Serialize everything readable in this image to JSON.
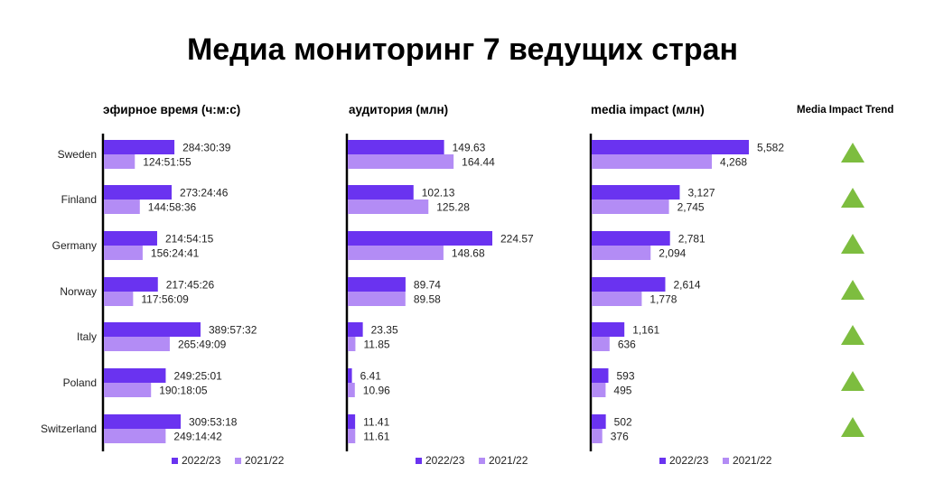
{
  "title": "Медиа мониторинг 7 ведущих стран",
  "colors": {
    "series_2022_23": "#6a33f0",
    "series_2021_22": "#b38cf5",
    "trend_up": "#7dbd3f",
    "axis": "#000000"
  },
  "trend_header": "Media Impact Trend",
  "trend_icons": [
    "triangle-up",
    "triangle-up",
    "triangle-up",
    "triangle-up",
    "triangle-up",
    "triangle-up",
    "triangle-up"
  ],
  "chart_data": [
    {
      "type": "bar",
      "orientation": "horizontal",
      "title": "эфирное время (ч:м:с)",
      "categories": [
        "Sweden",
        "Finland",
        "Germany",
        "Norway",
        "Italy",
        "Poland",
        "Switzerland"
      ],
      "series": [
        {
          "name": "2022/23",
          "values": [
            284.51,
            273.41,
            214.9,
            217.76,
            389.96,
            249.42,
            309.89
          ],
          "labels": [
            "284:30:39",
            "273:24:46",
            "214:54:15",
            "217:45:26",
            "389:57:32",
            "249:25:01",
            "309:53:18"
          ]
        },
        {
          "name": "2021/22",
          "values": [
            124.87,
            144.98,
            156.41,
            117.94,
            265.82,
            190.3,
            249.25
          ],
          "labels": [
            "124:51:55",
            "144:58:36",
            "156:24:41",
            "117:56:09",
            "265:49:09",
            "190:18:05",
            "249:14:42"
          ]
        }
      ],
      "legend_position": "bottom"
    },
    {
      "type": "bar",
      "orientation": "horizontal",
      "title": "аудитория (млн)",
      "categories": [
        "Sweden",
        "Finland",
        "Germany",
        "Norway",
        "Italy",
        "Poland",
        "Switzerland"
      ],
      "series": [
        {
          "name": "2022/23",
          "values": [
            149.63,
            102.13,
            224.57,
            89.74,
            23.35,
            6.41,
            11.41
          ],
          "labels": [
            "149.63",
            "102.13",
            "224.57",
            "89.74",
            "23.35",
            "6.41",
            "11.41"
          ]
        },
        {
          "name": "2021/22",
          "values": [
            164.44,
            125.28,
            148.68,
            89.58,
            11.85,
            10.96,
            11.61
          ],
          "labels": [
            "164.44",
            "125.28",
            "148.68",
            "89.58",
            "11.85",
            "10.96",
            "11.61"
          ]
        }
      ],
      "legend_position": "bottom"
    },
    {
      "type": "bar",
      "orientation": "horizontal",
      "title": "media impact (млн)",
      "categories": [
        "Sweden",
        "Finland",
        "Germany",
        "Norway",
        "Italy",
        "Poland",
        "Switzerland"
      ],
      "series": [
        {
          "name": "2022/23",
          "values": [
            5582,
            3127,
            2781,
            2614,
            1161,
            593,
            502
          ],
          "labels": [
            "5,582",
            "3,127",
            "2,781",
            "2,614",
            "1,161",
            "593",
            "502"
          ]
        },
        {
          "name": "2021/22",
          "values": [
            4268,
            2745,
            2094,
            1778,
            636,
            495,
            376
          ],
          "labels": [
            "4,268",
            "2,745",
            "2,094",
            "1,778",
            "636",
            "495",
            "376"
          ]
        }
      ],
      "legend_position": "bottom"
    }
  ]
}
